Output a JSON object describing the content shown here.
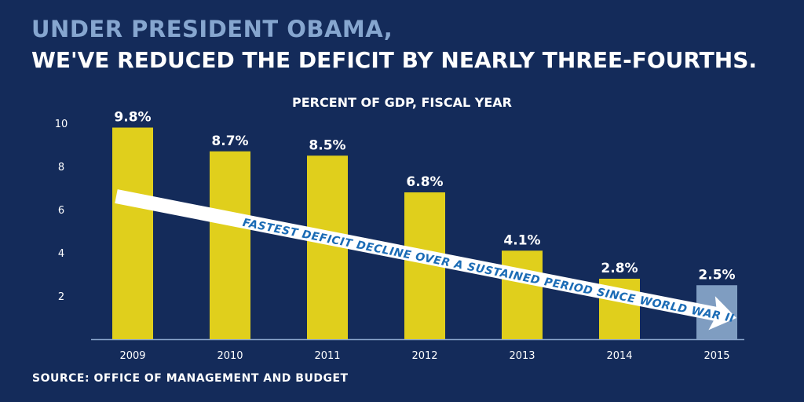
{
  "header": {
    "title_line1": "UNDER PRESIDENT OBAMA,",
    "title_line2": "WE'VE REDUCED THE DEFICIT BY NEARLY THREE-FOURTHS."
  },
  "source": "SOURCE: OFFICE OF MANAGEMENT AND BUDGET",
  "chart_data": {
    "type": "bar",
    "title": "PERCENT OF GDP, FISCAL YEAR",
    "categories": [
      "2009",
      "2010",
      "2011",
      "2012",
      "2013",
      "2014",
      "2015"
    ],
    "values": [
      9.8,
      8.7,
      8.5,
      6.8,
      4.1,
      2.8,
      2.5
    ],
    "data_labels": [
      "9.8%",
      "8.7%",
      "8.5%",
      "6.8%",
      "4.1%",
      "2.8%",
      "2.5%"
    ],
    "yticks": [
      2,
      4,
      6,
      8,
      10
    ],
    "ylim": [
      0,
      10
    ],
    "grid": false,
    "annotation": "FASTEST DEFICIT DECLINE OVER A SUSTAINED PERIOD SINCE WORLD WAR II",
    "colors": {
      "bar": "#e0cf1c",
      "bar_projected": "#7f9dc1",
      "background": "#142b5a",
      "annotation_text": "#1a6bb5"
    }
  }
}
